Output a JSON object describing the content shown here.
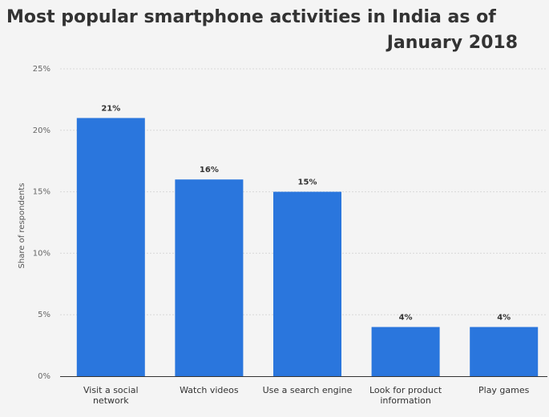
{
  "chart_data": {
    "type": "bar",
    "title_lines": [
      "Most popular smartphone activities in India as of",
      "January 2018"
    ],
    "xlabel": "",
    "ylabel": "Share of respondents",
    "categories": [
      [
        "Visit a social",
        "network"
      ],
      [
        "Watch videos"
      ],
      [
        "Use a search engine"
      ],
      [
        "Look for product",
        "information"
      ],
      [
        "Play games"
      ]
    ],
    "values": [
      21,
      16,
      15,
      4,
      4
    ],
    "value_labels": [
      "21%",
      "16%",
      "15%",
      "4%",
      "4%"
    ],
    "ylim": [
      0,
      25
    ],
    "yticks": [
      0,
      5,
      10,
      15,
      20,
      25
    ],
    "ytick_labels": [
      "0%",
      "5%",
      "10%",
      "15%",
      "20%",
      "25%"
    ],
    "grid": true,
    "bar_color": "#2a76dd"
  }
}
